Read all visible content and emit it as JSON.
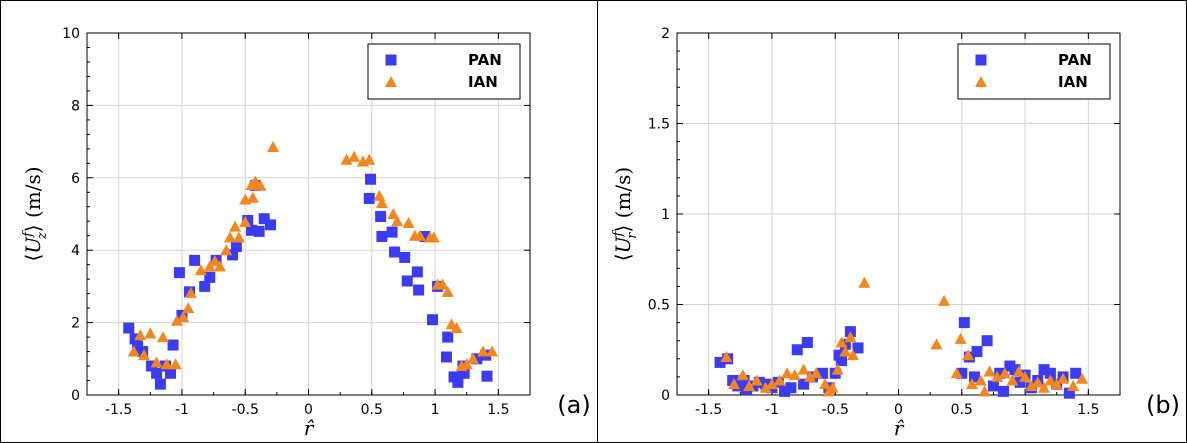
{
  "chart_data": [
    {
      "type": "scatter",
      "panel_label": "(a)",
      "xlabel": "r̂",
      "ylabel": "⟨U_z^f⟩ (m/s)",
      "ylabel_parts": {
        "open": "⟨",
        "var": "U",
        "sup": "f",
        "sub": "z",
        "close": "⟩",
        "unit": " (m/s)"
      },
      "xlim": [
        -1.75,
        1.75
      ],
      "ylim": [
        0,
        10
      ],
      "xticks": [
        -1.5,
        -1,
        -0.5,
        0,
        0.5,
        1,
        1.5
      ],
      "xtick_labels": [
        "-1.5",
        "-1",
        "-0.5",
        "0",
        "0.5",
        "1",
        "1.5"
      ],
      "yticks": [
        0,
        2,
        4,
        6,
        8,
        10
      ],
      "ytick_labels": [
        "0",
        "2",
        "4",
        "6",
        "8",
        "10"
      ],
      "grid": true,
      "legend_position": "top-right",
      "series": [
        {
          "name": "PAN",
          "marker": "square",
          "color": "#3b3bf2",
          "points": [
            [
              -1.42,
              1.85
            ],
            [
              -1.37,
              1.55
            ],
            [
              -1.35,
              1.35
            ],
            [
              -1.31,
              1.2
            ],
            [
              -1.24,
              0.8
            ],
            [
              -1.2,
              0.6
            ],
            [
              -1.17,
              0.3
            ],
            [
              -1.13,
              0.8
            ],
            [
              -1.09,
              0.6
            ],
            [
              -1.07,
              1.38
            ],
            [
              -1.02,
              3.38
            ],
            [
              -1.0,
              2.2
            ],
            [
              -0.94,
              2.85
            ],
            [
              -0.9,
              3.72
            ],
            [
              -0.82,
              3.0
            ],
            [
              -0.78,
              3.25
            ],
            [
              -0.73,
              3.72
            ],
            [
              -0.6,
              3.87
            ],
            [
              -0.57,
              4.1
            ],
            [
              -0.48,
              4.82
            ],
            [
              -0.45,
              4.55
            ],
            [
              -0.42,
              5.79
            ],
            [
              -0.39,
              4.52
            ],
            [
              -0.35,
              4.87
            ],
            [
              -0.3,
              4.7
            ],
            [
              0.49,
              5.96
            ],
            [
              0.48,
              5.43
            ],
            [
              0.57,
              4.93
            ],
            [
              0.58,
              4.38
            ],
            [
              0.68,
              3.95
            ],
            [
              0.66,
              4.5
            ],
            [
              0.76,
              3.8
            ],
            [
              0.78,
              3.15
            ],
            [
              0.86,
              3.4
            ],
            [
              0.87,
              2.9
            ],
            [
              0.92,
              4.38
            ],
            [
              0.98,
              2.08
            ],
            [
              1.02,
              3.0
            ],
            [
              1.1,
              1.6
            ],
            [
              1.09,
              1.05
            ],
            [
              1.15,
              0.5
            ],
            [
              1.18,
              0.35
            ],
            [
              1.22,
              0.8
            ],
            [
              1.23,
              0.6
            ],
            [
              1.33,
              1.0
            ],
            [
              1.4,
              1.1
            ],
            [
              1.41,
              0.52
            ]
          ]
        },
        {
          "name": "IAN",
          "marker": "triangle",
          "color": "#f5851f",
          "points": [
            [
              -1.38,
              1.2
            ],
            [
              -1.33,
              1.65
            ],
            [
              -1.3,
              1.1
            ],
            [
              -1.25,
              1.7
            ],
            [
              -1.2,
              0.9
            ],
            [
              -1.15,
              1.6
            ],
            [
              -1.12,
              0.85
            ],
            [
              -1.05,
              0.85
            ],
            [
              -1.04,
              2.05
            ],
            [
              -0.99,
              2.15
            ],
            [
              -0.95,
              2.4
            ],
            [
              -0.93,
              2.82
            ],
            [
              -0.85,
              3.45
            ],
            [
              -0.78,
              3.55
            ],
            [
              -0.74,
              3.7
            ],
            [
              -0.7,
              3.55
            ],
            [
              -0.65,
              4.0
            ],
            [
              -0.62,
              4.35
            ],
            [
              -0.58,
              4.65
            ],
            [
              -0.55,
              4.35
            ],
            [
              -0.5,
              5.4
            ],
            [
              -0.5,
              4.78
            ],
            [
              -0.45,
              5.8
            ],
            [
              -0.44,
              5.45
            ],
            [
              -0.42,
              5.9
            ],
            [
              -0.38,
              5.78
            ],
            [
              -0.28,
              6.85
            ],
            [
              0.3,
              6.5
            ],
            [
              0.36,
              6.58
            ],
            [
              0.43,
              6.45
            ],
            [
              0.48,
              6.5
            ],
            [
              0.56,
              5.5
            ],
            [
              0.58,
              5.3
            ],
            [
              0.67,
              5.0
            ],
            [
              0.7,
              4.8
            ],
            [
              0.79,
              4.75
            ],
            [
              0.84,
              4.4
            ],
            [
              0.88,
              4.4
            ],
            [
              0.96,
              4.35
            ],
            [
              0.99,
              4.35
            ],
            [
              1.02,
              3.05
            ],
            [
              1.06,
              3.05
            ],
            [
              1.1,
              2.85
            ],
            [
              1.13,
              1.95
            ],
            [
              1.17,
              1.85
            ],
            [
              1.21,
              0.8
            ],
            [
              1.25,
              0.85
            ],
            [
              1.3,
              1.0
            ],
            [
              1.38,
              1.2
            ],
            [
              1.45,
              1.2
            ]
          ]
        }
      ]
    },
    {
      "type": "scatter",
      "panel_label": "(b)",
      "xlabel": "r̂",
      "ylabel": "⟨U_r^f⟩ (m/s)",
      "ylabel_parts": {
        "open": "⟨",
        "var": "U",
        "sup": "f",
        "sub": "r",
        "close": "⟩",
        "unit": " (m/s)"
      },
      "xlim": [
        -1.75,
        1.75
      ],
      "ylim": [
        0,
        2
      ],
      "xticks": [
        -1.5,
        -1,
        -0.5,
        0,
        0.5,
        1,
        1.5
      ],
      "xtick_labels": [
        "-1.5",
        "-1",
        "-0.5",
        "0",
        "0.5",
        "1",
        "1.5"
      ],
      "yticks": [
        0,
        0.5,
        1,
        1.5,
        2
      ],
      "ytick_labels": [
        "0",
        "0.5",
        "1",
        "1.5",
        "2"
      ],
      "grid": true,
      "legend_position": "top-right",
      "series": [
        {
          "name": "PAN",
          "marker": "square",
          "color": "#3b3bf2",
          "points": [
            [
              -1.41,
              0.18
            ],
            [
              -1.35,
              0.2
            ],
            [
              -1.31,
              0.08
            ],
            [
              -1.27,
              0.05
            ],
            [
              -1.22,
              0.08
            ],
            [
              -1.2,
              0.03
            ],
            [
              -1.15,
              0.05
            ],
            [
              -1.1,
              0.07
            ],
            [
              -1.05,
              0.06
            ],
            [
              -1.0,
              0.04
            ],
            [
              -0.95,
              0.07
            ],
            [
              -0.9,
              0.02
            ],
            [
              -0.85,
              0.04
            ],
            [
              -0.8,
              0.25
            ],
            [
              -0.75,
              0.06
            ],
            [
              -0.72,
              0.29
            ],
            [
              -0.68,
              0.1
            ],
            [
              -0.6,
              0.12
            ],
            [
              -0.55,
              0.04
            ],
            [
              -0.5,
              0.12
            ],
            [
              -0.47,
              0.22
            ],
            [
              -0.45,
              0.19
            ],
            [
              -0.42,
              0.28
            ],
            [
              -0.38,
              0.35
            ],
            [
              -0.32,
              0.26
            ],
            [
              0.5,
              0.12
            ],
            [
              0.52,
              0.4
            ],
            [
              0.56,
              0.21
            ],
            [
              0.6,
              0.1
            ],
            [
              0.62,
              0.24
            ],
            [
              0.7,
              0.3
            ],
            [
              0.75,
              0.05
            ],
            [
              0.8,
              0.12
            ],
            [
              0.83,
              0.02
            ],
            [
              0.88,
              0.16
            ],
            [
              0.92,
              0.14
            ],
            [
              0.96,
              0.07
            ],
            [
              1.0,
              0.11
            ],
            [
              1.05,
              0.04
            ],
            [
              1.1,
              0.08
            ],
            [
              1.15,
              0.14
            ],
            [
              1.2,
              0.12
            ],
            [
              1.25,
              0.06
            ],
            [
              1.3,
              0.1
            ],
            [
              1.35,
              0.01
            ],
            [
              1.4,
              0.12
            ]
          ]
        },
        {
          "name": "IAN",
          "marker": "triangle",
          "color": "#f5851f",
          "points": [
            [
              -1.36,
              0.21
            ],
            [
              -1.3,
              0.06
            ],
            [
              -1.23,
              0.11
            ],
            [
              -1.18,
              0.05
            ],
            [
              -1.12,
              0.08
            ],
            [
              -1.05,
              0.04
            ],
            [
              -1.0,
              0.06
            ],
            [
              -0.94,
              0.08
            ],
            [
              -0.88,
              0.12
            ],
            [
              -0.82,
              0.11
            ],
            [
              -0.75,
              0.14
            ],
            [
              -0.7,
              0.1
            ],
            [
              -0.65,
              0.12
            ],
            [
              -0.58,
              0.06
            ],
            [
              -0.55,
              0.02
            ],
            [
              -0.52,
              0.04
            ],
            [
              -0.48,
              0.14
            ],
            [
              -0.45,
              0.29
            ],
            [
              -0.42,
              0.24
            ],
            [
              -0.38,
              0.32
            ],
            [
              -0.36,
              0.22
            ],
            [
              -0.27,
              0.62
            ],
            [
              0.3,
              0.28
            ],
            [
              0.36,
              0.52
            ],
            [
              0.46,
              0.12
            ],
            [
              0.49,
              0.31
            ],
            [
              0.55,
              0.22
            ],
            [
              0.58,
              0.06
            ],
            [
              0.65,
              0.08
            ],
            [
              0.68,
              0.02
            ],
            [
              0.72,
              0.13
            ],
            [
              0.78,
              0.1
            ],
            [
              0.84,
              0.12
            ],
            [
              0.9,
              0.08
            ],
            [
              0.95,
              0.13
            ],
            [
              1.0,
              0.1
            ],
            [
              1.05,
              0.05
            ],
            [
              1.1,
              0.07
            ],
            [
              1.15,
              0.04
            ],
            [
              1.2,
              0.08
            ],
            [
              1.25,
              0.06
            ],
            [
              1.3,
              0.09
            ],
            [
              1.38,
              0.05
            ],
            [
              1.45,
              0.09
            ]
          ]
        }
      ]
    }
  ]
}
